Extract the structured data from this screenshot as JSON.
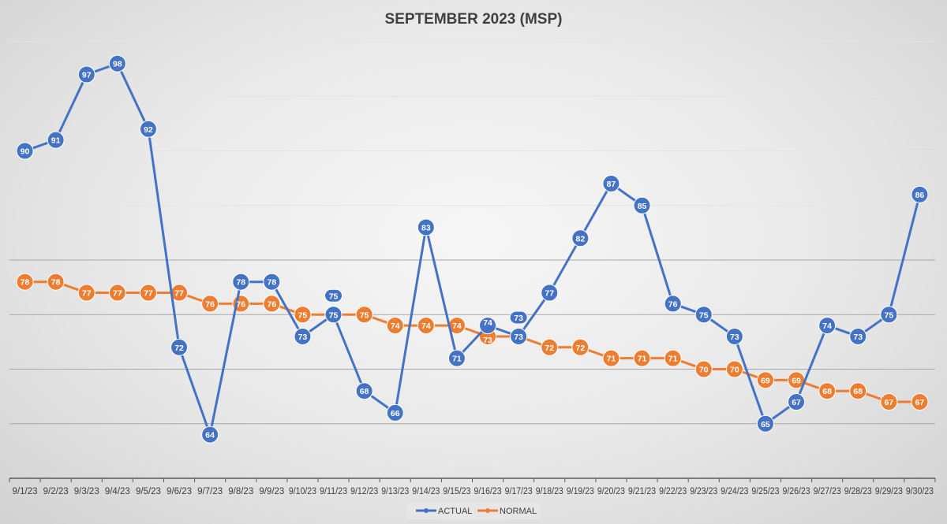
{
  "chart_data": {
    "type": "line",
    "title": "SEPTEMBER 2023 (MSP)",
    "xlabel": "",
    "ylabel": "",
    "ylim": [
      60,
      100
    ],
    "grid": true,
    "legend": "bottom-center",
    "x": [
      "9/1/23",
      "9/2/23",
      "9/3/23",
      "9/4/23",
      "9/5/23",
      "9/6/23",
      "9/7/23",
      "9/8/23",
      "9/9/23",
      "9/10/23",
      "9/11/23",
      "9/12/23",
      "9/13/23",
      "9/14/23",
      "9/15/23",
      "9/16/23",
      "9/17/23",
      "9/18/23",
      "9/19/23",
      "9/20/23",
      "9/21/23",
      "9/22/23",
      "9/23/23",
      "9/24/23",
      "9/25/23",
      "9/26/23",
      "9/27/23",
      "9/28/23",
      "9/29/23",
      "9/30/23"
    ],
    "series": [
      {
        "name": "ACTUAL",
        "color": "#4472C4",
        "values": [
          90,
          91,
          97,
          98,
          92,
          72,
          64,
          78,
          78,
          73,
          75,
          68,
          66,
          83,
          71,
          74,
          73,
          77,
          82,
          87,
          85,
          76,
          75,
          73,
          65,
          67,
          74,
          73,
          75,
          86
        ]
      },
      {
        "name": "NORMAL",
        "color": "#ED7D31",
        "values": [
          78,
          78,
          77,
          77,
          77,
          77,
          76,
          76,
          76,
          75,
          75,
          75,
          74,
          74,
          74,
          73,
          73,
          72,
          72,
          71,
          71,
          71,
          70,
          70,
          69,
          69,
          68,
          68,
          67,
          67
        ]
      }
    ]
  }
}
